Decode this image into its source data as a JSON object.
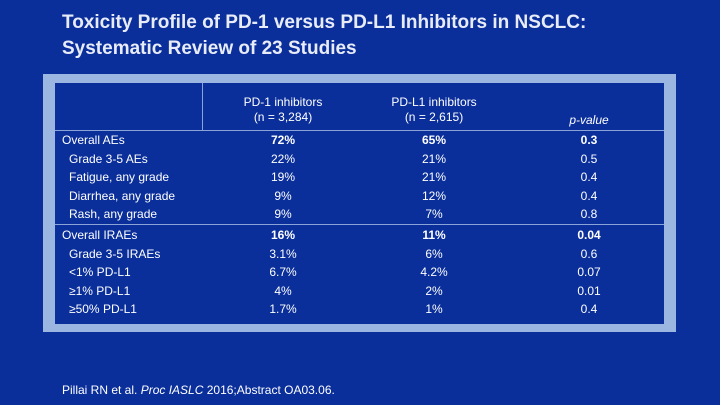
{
  "title_line1": "Toxicity Profile of PD-1 versus PD-L1 Inhibitors in NSCLC:",
  "title_line2": "Systematic Review of 23 Studies",
  "columns": {
    "pd1": {
      "name": "PD-1 inhibitors",
      "n": "(n = 3,284)"
    },
    "pdl1": {
      "name": "PD-L1 inhibitors",
      "n": "(n = 2,615)"
    },
    "pvalue": "p-value"
  },
  "group1": [
    {
      "label": "Overall AEs",
      "pd1": "72%",
      "pdl1": "65%",
      "p": "0.3"
    },
    {
      "label": "Grade 3-5 AEs",
      "pd1": "22%",
      "pdl1": "21%",
      "p": "0.5"
    },
    {
      "label": "Fatigue, any grade",
      "pd1": "19%",
      "pdl1": "21%",
      "p": "0.4"
    },
    {
      "label": "Diarrhea, any grade",
      "pd1": "9%",
      "pdl1": "12%",
      "p": "0.4"
    },
    {
      "label": "Rash, any grade",
      "pd1": "9%",
      "pdl1": "7%",
      "p": "0.8"
    }
  ],
  "group2": [
    {
      "label": "Overall IRAEs",
      "pd1": "16%",
      "pdl1": "11%",
      "p": "0.04"
    },
    {
      "label": "Grade 3-5 IRAEs",
      "pd1": "3.1%",
      "pdl1": "6%",
      "p": "0.6"
    },
    {
      "label": "<1% PD-L1",
      "pd1": "6.7%",
      "pdl1": "4.2%",
      "p": "0.07"
    },
    {
      "label": "≥1% PD-L1",
      "pd1": "4%",
      "pdl1": "2%",
      "p": "0.01"
    },
    {
      "label": "≥50% PD-L1",
      "pd1": "1.7%",
      "pdl1": "1%",
      "p": "0.4"
    }
  ],
  "footer": {
    "authors": "Pillai RN et al. ",
    "journal": "Proc IASLC",
    "rest": " 2016;Abstract OA03.06."
  }
}
